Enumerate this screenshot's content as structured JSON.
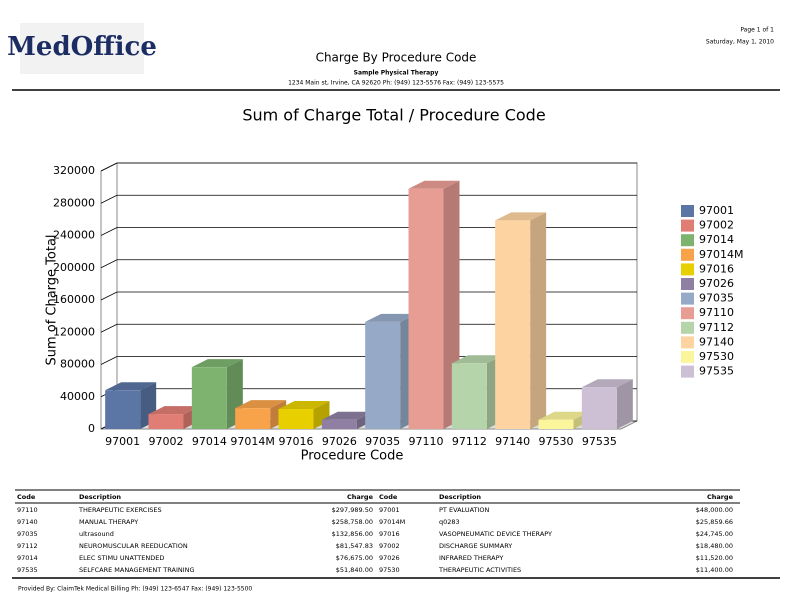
{
  "header": {
    "logo": "MedOffice",
    "page": "Page 1 of 1",
    "date": "Saturday, May 1, 2010",
    "title": "Charge By Procedure Code",
    "subtitle": "Sample Physical Therapy",
    "address": "1234 Main st, Irvine, CA 92620 Ph: (949) 123-5576 Fax: (949) 123-5575"
  },
  "chart_data": {
    "type": "bar3d",
    "title": "Sum of Charge Total / Procedure Code",
    "x_label": "Procedure Code",
    "y_label": "Sum of Charge Total",
    "categories": [
      "97001",
      "97002",
      "97014",
      "97014M",
      "97016",
      "97026",
      "97035",
      "97110",
      "97112",
      "97140",
      "97530",
      "97535"
    ],
    "values": [
      48000,
      18480,
      76675,
      25859.66,
      24745,
      11520,
      132856,
      297989.5,
      81547.83,
      258758,
      11400,
      51840
    ],
    "colors": [
      "#5b76a5",
      "#e07d74",
      "#7db36f",
      "#f8a24a",
      "#e8d000",
      "#8f7fa2",
      "#96aac8",
      "#e89d94",
      "#b6d4a9",
      "#fdd3a1",
      "#fbf59b",
      "#cdbfd4"
    ],
    "ylim": [
      0,
      320000
    ],
    "yticks": [
      0,
      40000,
      80000,
      120000,
      160000,
      200000,
      240000,
      280000,
      320000
    ],
    "grid": true,
    "legend": "right"
  },
  "table": {
    "columns": [
      "Code",
      "Description",
      "Charge",
      "Code",
      "Description",
      "Charge"
    ],
    "rows": [
      [
        "97110",
        "THERAPEUTIC EXERCISES",
        "$297,989.50",
        "97001",
        "PT EVALUATION",
        "$48,000.00"
      ],
      [
        "97140",
        "MANUAL THERAPY",
        "$258,758.00",
        "97014M",
        "q0283",
        "$25,859.66"
      ],
      [
        "97035",
        "ultrasound",
        "$132,856.00",
        "97016",
        "VASOPNEUMATIC DEVICE THERAPY",
        "$24,745.00"
      ],
      [
        "97112",
        "NEUROMUSCULAR REEDUCATION",
        "$81,547.83",
        "97002",
        "DISCHARGE SUMMARY",
        "$18,480.00"
      ],
      [
        "97014",
        "ELEC STIMU UNATTENDED",
        "$76,675.00",
        "97026",
        "INFRARED THERAPY",
        "$11,520.00"
      ],
      [
        "97535",
        "SELFCARE MANAGEMENT TRAINING",
        "$51,840.00",
        "97530",
        "THERAPEUTIC ACTIVITIES",
        "$11,400.00"
      ]
    ]
  },
  "footer": "Provided By: ClaimTek Medical Billing Ph: (949) 123-6547 Fax: (949) 123-5500"
}
